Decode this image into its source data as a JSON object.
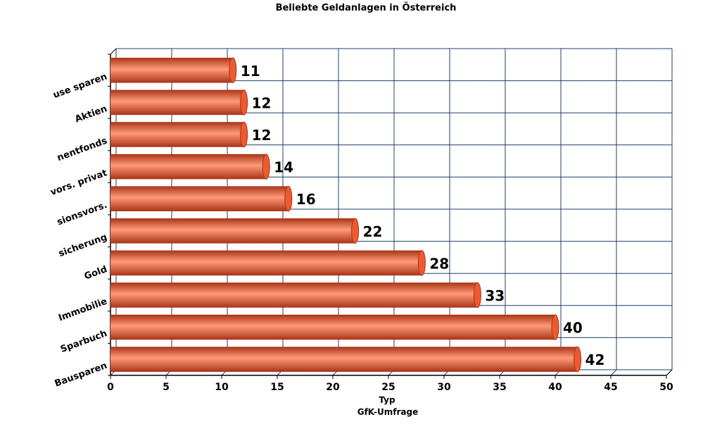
{
  "chart_data": {
    "type": "bar",
    "orientation": "horizontal",
    "title": "Beliebte Geldanlagen in Österreich",
    "xlabel": "Typ",
    "source": "GfK-Umfrage",
    "categories": [
      "Bausparen",
      "Sparbuch",
      "Immobilie",
      "Gold",
      "Lebensversicherung",
      "Pensionsvors.",
      "Pensionsvors. privat",
      "Investmentfonds",
      "Aktien",
      "Nichts/ lieber zu Hause sparen"
    ],
    "category_labels_visible": [
      "Bausparen",
      "Sparbuch",
      "Immobilie",
      "Gold",
      "sicherung",
      "sionsvors.",
      "vors. privat",
      "nentfonds",
      "Aktien",
      "use sparen"
    ],
    "values": [
      42,
      40,
      33,
      28,
      22,
      16,
      14,
      12,
      12,
      11
    ],
    "value_labels": [
      "42",
      "40",
      "33",
      "28",
      "22",
      "16",
      "14",
      "12",
      "12",
      "11"
    ],
    "xlim": [
      0,
      50
    ],
    "xticks": [
      "0",
      "5",
      "10",
      "15",
      "20",
      "25",
      "30",
      "35",
      "40",
      "45",
      "50"
    ],
    "grid": true,
    "legend": "none",
    "colors": {
      "bar": "#ee5a30",
      "bar_light": "#ff9a78",
      "bar_dark": "#a83416",
      "grid": "#1f3f6b"
    }
  }
}
